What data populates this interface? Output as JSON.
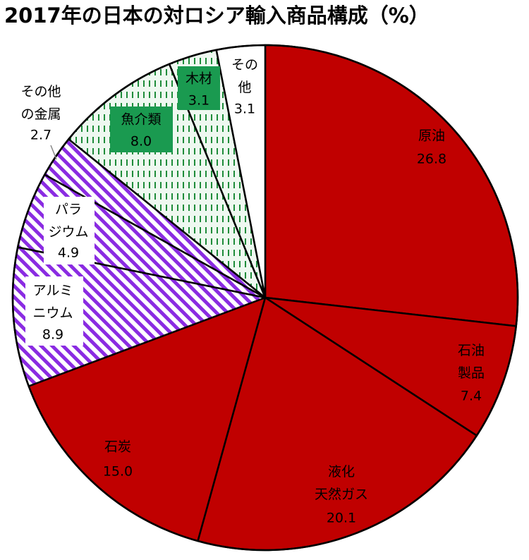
{
  "chart_data": {
    "type": "pie",
    "title": "2017年の日本の対ロシア輸入商品構成（%）",
    "categories": [
      "原油",
      "石油\n製品",
      "液化\n天然ガス",
      "石炭",
      "アルミ\nニウム",
      "パラ\nジウム",
      "その他\nの金属",
      "魚介類",
      "木材",
      "その\n他"
    ],
    "values": [
      26.8,
      7.4,
      20.1,
      15.0,
      8.9,
      4.9,
      2.7,
      8.0,
      3.1,
      3.1
    ],
    "value_labels": [
      "26.8",
      "7.4",
      "20.1",
      "15.0",
      "8.9",
      "4.9",
      "2.7",
      "8.0",
      "3.1",
      "3.1"
    ],
    "colors": [
      "#c00000",
      "#c00000",
      "#c00000",
      "#c00000",
      "#8a2be2",
      "#8a2be2",
      "#8a2be2",
      "#1e8c3a",
      "#1e8c3a",
      "#ffffff"
    ],
    "hatch": [
      null,
      null,
      null,
      null,
      "diagonal",
      "diagonal",
      "diagonal",
      "dashes",
      "dashes",
      null
    ]
  }
}
